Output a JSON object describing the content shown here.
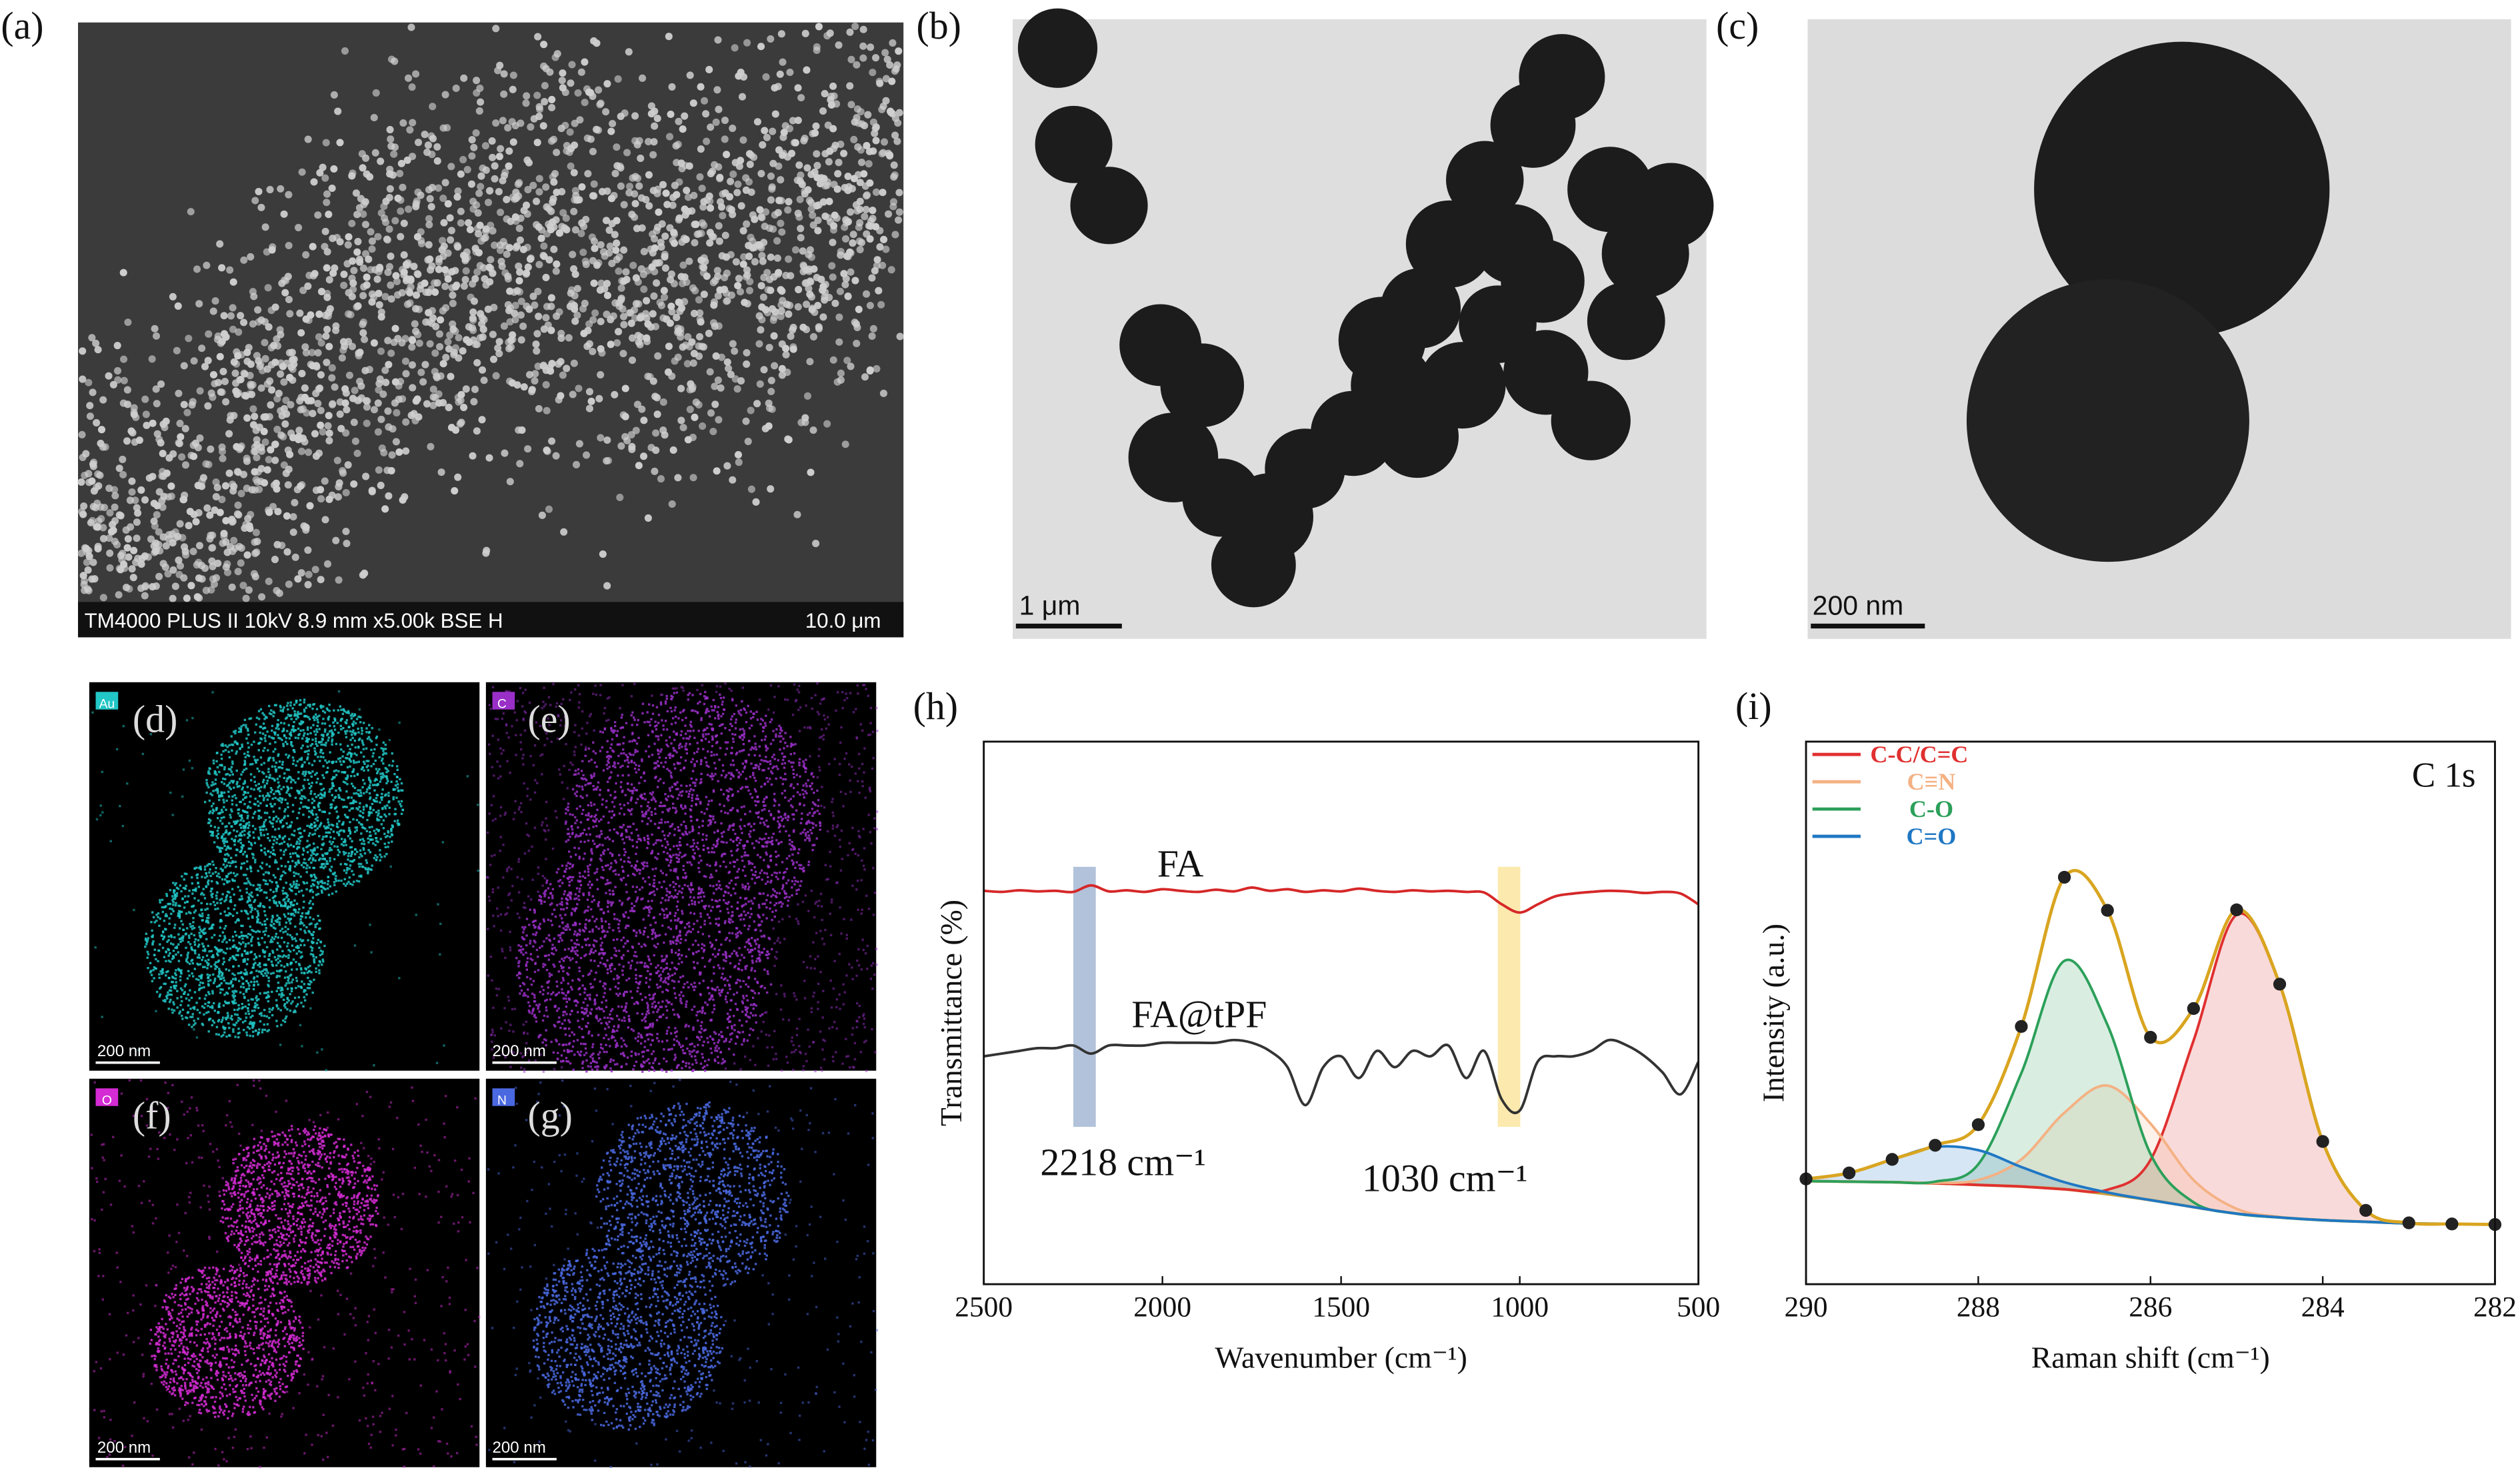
{
  "panels": {
    "a": {
      "label": "(a)",
      "info": "TM4000 PLUS II 10kV 8.9 mm x5.00k BSE H",
      "scale": "10.0 μm"
    },
    "b": {
      "label": "(b)",
      "scale": "1 μm"
    },
    "c": {
      "label": "(c)",
      "scale": "200 nm"
    },
    "d": {
      "label": "(d)",
      "element": "Au",
      "scale": "200 nm"
    },
    "e": {
      "label": "(e)",
      "element": "C",
      "scale": "200 nm"
    },
    "f": {
      "label": "(f)",
      "element": "O",
      "scale": "200 nm"
    },
    "g": {
      "label": "(g)",
      "element": "N",
      "scale": "200 nm"
    }
  },
  "chart_data": [
    {
      "type": "line",
      "title": "(h)",
      "xlabel": "Wavenumber (cm⁻¹)",
      "ylabel": "Transmittance (%)",
      "x": [
        2500,
        2450,
        2400,
        2350,
        2300,
        2250,
        2200,
        2150,
        2100,
        2050,
        2000,
        1950,
        1900,
        1850,
        1800,
        1750,
        1700,
        1650,
        1600,
        1550,
        1500,
        1450,
        1400,
        1350,
        1300,
        1250,
        1200,
        1150,
        1100,
        1050,
        1000,
        950,
        900,
        850,
        800,
        750,
        700,
        650,
        600,
        550,
        500
      ],
      "xlim": [
        2500,
        500
      ],
      "xticks": [
        2500,
        2000,
        1500,
        1000,
        500
      ],
      "ylim": [
        0,
        100
      ],
      "series": [
        {
          "name": "FA",
          "color": "#d62728",
          "values": [
            72.5,
            72.3,
            72.6,
            72.4,
            72.5,
            72.3,
            73.5,
            72.4,
            72.6,
            72.3,
            72.8,
            72.5,
            72.3,
            72.7,
            72.4,
            73.1,
            72.5,
            72.8,
            72.3,
            72.6,
            72.4,
            72.9,
            72.5,
            72.3,
            72.6,
            72.4,
            72.5,
            72.3,
            72.2,
            70,
            68.5,
            70,
            71.5,
            72,
            72.3,
            72.5,
            72.4,
            72.1,
            72.3,
            72,
            70
          ]
        },
        {
          "name": "FA@tPF",
          "color": "#333333",
          "values": [
            42,
            42.5,
            43,
            43.5,
            43.5,
            44,
            42.5,
            44,
            44,
            44,
            44.5,
            44.5,
            44.5,
            44.5,
            45,
            44.5,
            43,
            40,
            33,
            40,
            42,
            38,
            43,
            40,
            43,
            42,
            44,
            38,
            43,
            34,
            32,
            41,
            42,
            42,
            43,
            45,
            44,
            42,
            39,
            35,
            41
          ]
        }
      ],
      "highlights": [
        {
          "x": 2218,
          "label": "2218 cm⁻¹",
          "color": "#9fb3d1",
          "label_color": "#2c3e66"
        },
        {
          "x": 1030,
          "label": "1030 cm⁻¹",
          "color": "#fbe39a",
          "label_color": "#c9a227"
        }
      ]
    },
    {
      "type": "line",
      "title": "(i)",
      "xlabel": "Raman shift (cm⁻¹)",
      "ylabel": "Intensity (a.u.)",
      "annotation": "C 1s",
      "legend": "upper left",
      "x": [
        290,
        289.5,
        289,
        288.5,
        288,
        287.5,
        287,
        286.5,
        286,
        285.5,
        285,
        284.5,
        284,
        283.5,
        283,
        282.5,
        282
      ],
      "xlim": [
        290,
        282
      ],
      "xticks": [
        290,
        288,
        286,
        284,
        282
      ],
      "ylim": [
        0,
        100
      ],
      "series": [
        {
          "name": "C-C/C=C",
          "color": "#e03030",
          "values": [
            19,
            18.9,
            18.8,
            18.6,
            18.3,
            18,
            17.5,
            17.4,
            22.9,
            44.9,
            68.1,
            55.2,
            26.3,
            13.6,
            11.3,
            11.1,
            11
          ]
        },
        {
          "name": "C≡N",
          "color": "#f4b183",
          "values": [
            19,
            18.9,
            18.8,
            18.7,
            19.2,
            23,
            31.6,
            36.6,
            29.6,
            19.2,
            13.9,
            12.4,
            11.8,
            11.5,
            11.2,
            11.1,
            11
          ]
        },
        {
          "name": "C-O",
          "color": "#2ca05a",
          "values": [
            19,
            18.9,
            18.8,
            18.9,
            22.1,
            38.9,
            59.6,
            47.8,
            24,
            15.1,
            13,
            12.3,
            11.8,
            11.5,
            11.2,
            11.1,
            11
          ]
        },
        {
          "name": "C=O",
          "color": "#1f77c4",
          "values": [
            19.4,
            20.5,
            23,
            25.3,
            24.7,
            21.6,
            18.8,
            16.9,
            15.5,
            14.2,
            13,
            12.3,
            11.8,
            11.5,
            11.2,
            11.1,
            11
          ]
        }
      ],
      "baseline": {
        "color": "#c8a03c",
        "values": [
          19,
          18.9,
          18.8,
          18.6,
          18.3,
          18,
          17.5,
          16.6,
          15.5,
          14.2,
          13,
          12.3,
          11.8,
          11.5,
          11.2,
          11.1,
          11
        ]
      },
      "envelope": {
        "color": "#d9a520",
        "marker_color": "#222222",
        "values": [
          19.4,
          20.5,
          23,
          25.6,
          29.4,
          47.5,
          75,
          68.9,
          45.5,
          50.8,
          69,
          55.3,
          26.3,
          13.6,
          11.3,
          11.1,
          11
        ]
      }
    }
  ]
}
